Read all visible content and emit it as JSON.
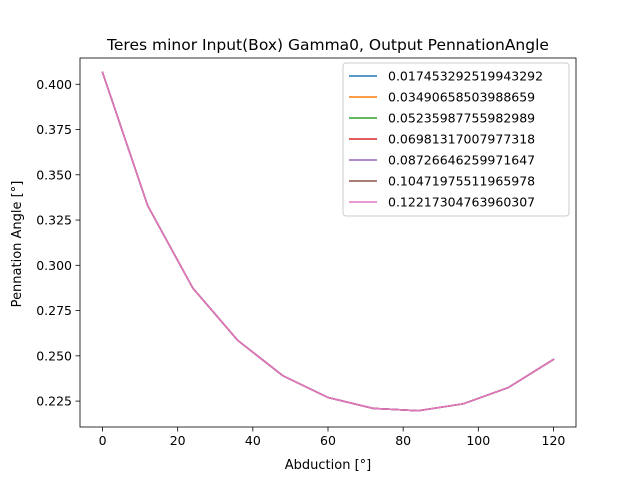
{
  "chart_data": {
    "type": "line",
    "title": "Teres minor Input(Box) Gamma0, Output PennationAngle",
    "xlabel": "Abduction [°]",
    "ylabel": "Pennation Angle [°]",
    "xlim": [
      -6,
      126
    ],
    "ylim": [
      0.2107,
      0.4145
    ],
    "xticks": [
      0,
      20,
      40,
      60,
      80,
      100,
      120
    ],
    "yticks": [
      0.225,
      0.25,
      0.275,
      0.3,
      0.325,
      0.35,
      0.375,
      0.4
    ],
    "ytick_labels": [
      "0.225",
      "0.250",
      "0.275",
      "0.300",
      "0.325",
      "0.350",
      "0.375",
      "0.400"
    ],
    "grid": false,
    "legend_position": "upper right",
    "x": [
      0,
      12,
      24,
      36,
      48,
      60,
      72,
      84,
      96,
      108,
      120
    ],
    "series": [
      {
        "name": "0.017453292519943292",
        "color": "#1f77b4",
        "values": [
          0.4065,
          0.333,
          0.2875,
          0.2585,
          0.239,
          0.227,
          0.221,
          0.2197,
          0.2235,
          0.2325,
          0.248
        ]
      },
      {
        "name": "0.03490658503988659",
        "color": "#ff7f0e",
        "values": [
          0.4065,
          0.333,
          0.2875,
          0.2585,
          0.239,
          0.227,
          0.221,
          0.2197,
          0.2235,
          0.2325,
          0.248
        ]
      },
      {
        "name": "0.05235987755982989",
        "color": "#2ca02c",
        "values": [
          0.4065,
          0.333,
          0.2875,
          0.2585,
          0.239,
          0.227,
          0.221,
          0.2197,
          0.2235,
          0.2325,
          0.248
        ]
      },
      {
        "name": "0.06981317007977318",
        "color": "#d62728",
        "values": [
          0.4065,
          0.333,
          0.2875,
          0.2585,
          0.239,
          0.227,
          0.221,
          0.2197,
          0.2235,
          0.2325,
          0.248
        ]
      },
      {
        "name": "0.08726646259971647",
        "color": "#9467bd",
        "values": [
          0.4065,
          0.333,
          0.2875,
          0.2585,
          0.239,
          0.227,
          0.221,
          0.2197,
          0.2235,
          0.2325,
          0.248
        ]
      },
      {
        "name": "0.10471975511965978",
        "color": "#8c564b",
        "values": [
          0.4065,
          0.333,
          0.2875,
          0.2585,
          0.239,
          0.227,
          0.221,
          0.2197,
          0.2235,
          0.2325,
          0.248
        ]
      },
      {
        "name": "0.12217304763960307",
        "color": "#e377c2",
        "values": [
          0.4065,
          0.333,
          0.2875,
          0.2585,
          0.239,
          0.227,
          0.221,
          0.2197,
          0.2235,
          0.2325,
          0.248
        ]
      }
    ]
  }
}
